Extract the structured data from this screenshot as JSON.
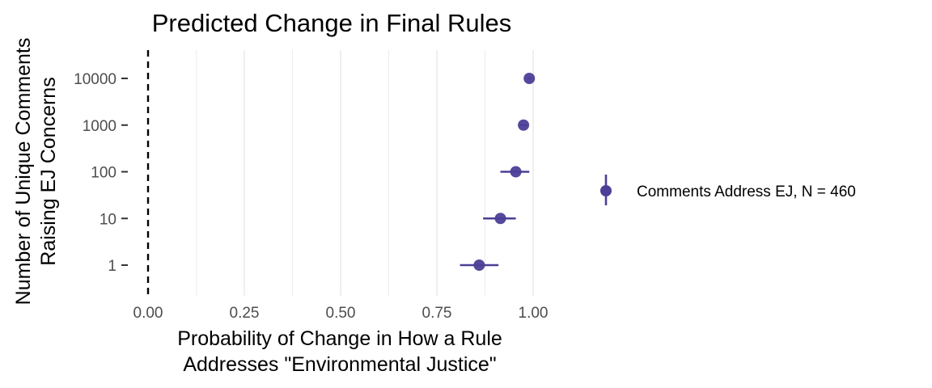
{
  "chart_data": {
    "type": "scatter",
    "title": "Predicted Change in Final Rules",
    "xlabel_lines": [
      "Probability of Change in How a Rule",
      "Addresses \"Environmental Justice\""
    ],
    "ylabel_lines": [
      "Number of Unique Comments",
      "Raising EJ Concerns"
    ],
    "xlim": [
      0,
      1
    ],
    "xticks": [
      0,
      0.25,
      0.5,
      0.75,
      1.0
    ],
    "xtick_labels": [
      "0.00",
      "0.25",
      "0.50",
      "0.75",
      "1.00"
    ],
    "yscale": "log10",
    "yticks": [
      1,
      10,
      100,
      1000,
      10000
    ],
    "ytick_labels": [
      "1",
      "10",
      "100",
      "1000",
      "10000"
    ],
    "reference_line": {
      "x": 0,
      "style": "dashed"
    },
    "grid": "vertical",
    "legend_position": "right",
    "color": "#4b3f96",
    "series": [
      {
        "name": "Comments Address EJ, N = 460",
        "points": [
          {
            "y": 1,
            "x": 0.86,
            "lower": 0.81,
            "upper": 0.91
          },
          {
            "y": 10,
            "x": 0.915,
            "lower": 0.87,
            "upper": 0.955
          },
          {
            "y": 100,
            "x": 0.955,
            "lower": 0.915,
            "upper": 0.99
          },
          {
            "y": 1000,
            "x": 0.975,
            "lower": 0.965,
            "upper": 0.985
          },
          {
            "y": 10000,
            "x": 0.99,
            "lower": 0.985,
            "upper": 0.995
          }
        ]
      }
    ]
  }
}
